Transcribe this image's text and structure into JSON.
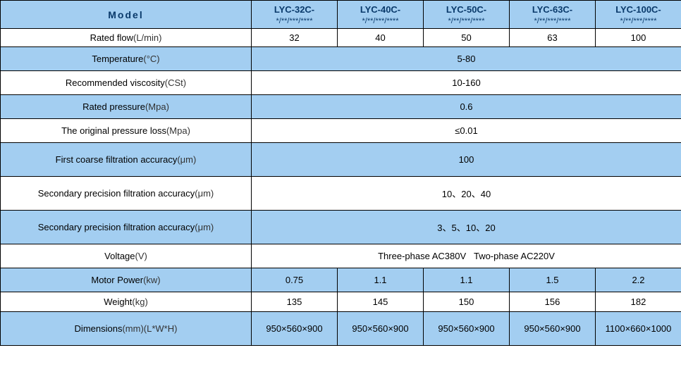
{
  "header": {
    "model_label": "Model",
    "models": [
      {
        "name": "LYC-32C-",
        "sub": "*/**/***/****"
      },
      {
        "name": "LYC-40C-",
        "sub": "*/**/***/****"
      },
      {
        "name": "LYC-50C-",
        "sub": "*/**/***/****"
      },
      {
        "name": "LYC-63C-",
        "sub": "*/**/***/****"
      },
      {
        "name": "LYC-100C-",
        "sub": "*/**/***/****"
      }
    ]
  },
  "rows": {
    "rated_flow": {
      "label": "Rated flow",
      "unit": "(L/min)",
      "vals": [
        "32",
        "40",
        "50",
        "63",
        "100"
      ]
    },
    "temperature": {
      "label": "Temperature",
      "unit": "(°C)",
      "val": "5-80"
    },
    "viscosity": {
      "label": "Recommended viscosity",
      "unit": "(CSt)",
      "val": "10-160"
    },
    "rated_pressure": {
      "label": "Rated pressure",
      "unit": "(Mpa)",
      "val": "0.6"
    },
    "pressure_loss": {
      "label": "The original pressure loss",
      "unit": "(Mpa)",
      "val": "≤0.01"
    },
    "first_coarse": {
      "label": "First coarse filtration accuracy",
      "unit": "(μm)",
      "val": "100"
    },
    "sec_prec1": {
      "label": "Secondary precision filtration accuracy",
      "unit": "(μm)",
      "val": "10、20、40"
    },
    "sec_prec2": {
      "label": "Secondary precision filtration accuracy",
      "unit": "(μm)",
      "val": "3、5、10、20"
    },
    "voltage": {
      "label": "Voltage",
      "unit": "(V)",
      "val": "Three-phase AC380V   Two-phase AC220V"
    },
    "motor_power": {
      "label": "Motor Power",
      "unit": "(kw)",
      "vals": [
        "0.75",
        "1.1",
        "1.1",
        "1.5",
        "2.2"
      ]
    },
    "weight": {
      "label": "Weight",
      "unit": "(kg)",
      "vals": [
        "135",
        "145",
        "150",
        "156",
        "182"
      ]
    },
    "dimensions": {
      "label": "Dimensions",
      "unit": "(mm)(L*W*H)",
      "vals": [
        "950×560×900",
        "950×560×900",
        "950×560×900",
        "950×560×900",
        "1100×660×1000"
      ]
    }
  },
  "colors": {
    "blue": "#a3cef1",
    "white": "#ffffff",
    "header_text": "#0a3a6b"
  }
}
